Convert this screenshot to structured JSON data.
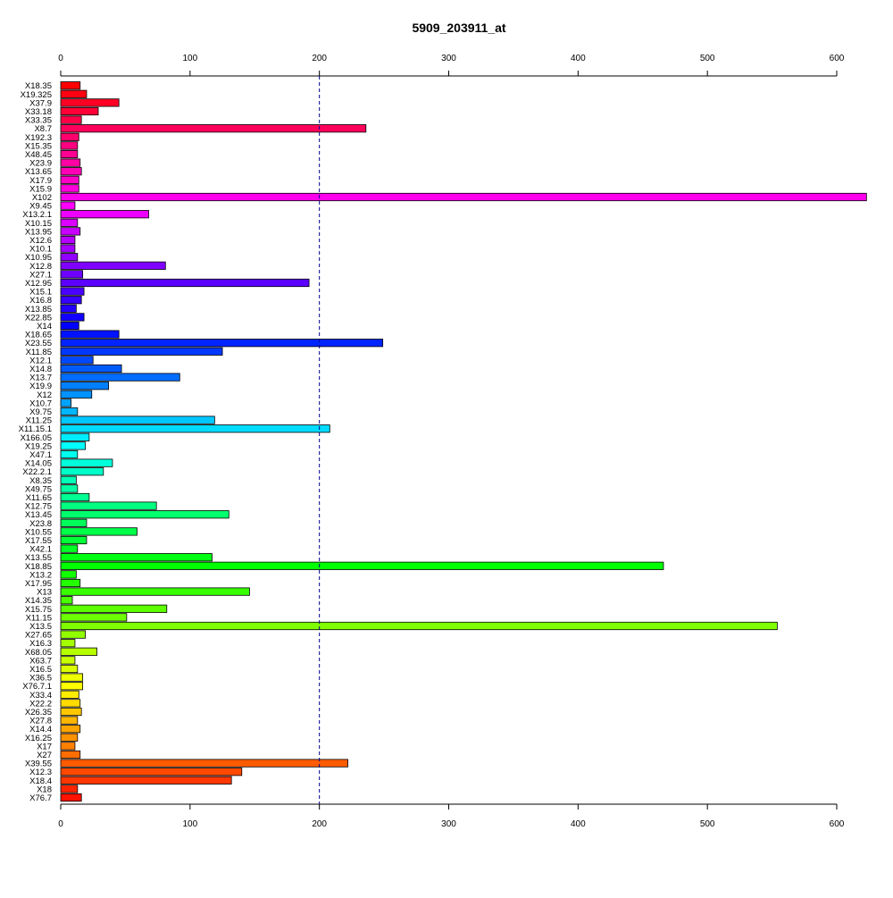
{
  "chart_data": {
    "type": "bar",
    "orientation": "horizontal",
    "title": "5909_203911_at",
    "xlabel": "",
    "ylabel": "",
    "xlim": [
      0,
      600
    ],
    "xticks": [
      0,
      100,
      200,
      300,
      400,
      500,
      600
    ],
    "axes": "top and bottom",
    "grid": false,
    "reference_line": {
      "x": 200,
      "style": "dashed",
      "color": "#00008b"
    },
    "bar_colors": "rainbow gradient from top (red) through magenta, blue, cyan, green, yellow, orange back to red",
    "categories": [
      "X18.35",
      "X19.325",
      "X37.9",
      "X33.18",
      "X33.35",
      "X8.7",
      "X192.3",
      "X15.35",
      "X48.45",
      "X23.9",
      "X13.65",
      "X17.9",
      "X15.9",
      "X102",
      "X9.45",
      "X13.2.1",
      "X10.15",
      "X13.95",
      "X12.6",
      "X10.1",
      "X10.95",
      "X12.8",
      "X27.1",
      "X12.95",
      "X15.1",
      "X16.8",
      "X13.85",
      "X22.85",
      "X14",
      "X18.65",
      "X23.55",
      "X11.85",
      "X12.1",
      "X14.8",
      "X13.7",
      "X19.9",
      "X12",
      "X10.7",
      "X9.75",
      "X11.25",
      "X11.15.1",
      "X166.05",
      "X19.25",
      "X47.1",
      "X14.05",
      "X22.2.1",
      "X8.35",
      "X49.75",
      "X11.65",
      "X12.75",
      "X13.45",
      "X23.8",
      "X10.55",
      "X17.55",
      "X42.1",
      "X13.55",
      "X18.85",
      "X13.2",
      "X17.95",
      "X13",
      "X14.35",
      "X15.75",
      "X11.15",
      "X13.5",
      "X27.65",
      "X16.3",
      "X68.05",
      "X63.7",
      "X16.5",
      "X36.5",
      "X76.7.1",
      "X33.4",
      "X22.2",
      "X26.35",
      "X27.8",
      "X14.4",
      "X16.25",
      "X17",
      "X27",
      "X39.55",
      "X12.3",
      "X18.4",
      "X18",
      "X76.7"
    ],
    "values": [
      15,
      20,
      45,
      29,
      16,
      236,
      14,
      13,
      13,
      15,
      16,
      14,
      14,
      623,
      11,
      68,
      13,
      15,
      11,
      11,
      13,
      81,
      17,
      192,
      18,
      16,
      12,
      18,
      14,
      45,
      249,
      125,
      25,
      47,
      92,
      37,
      24,
      8,
      13,
      119,
      208,
      22,
      19,
      13,
      40,
      33,
      12,
      13,
      22,
      74,
      130,
      20,
      59,
      20,
      13,
      117,
      466,
      12,
      15,
      146,
      9,
      82,
      51,
      554,
      19,
      11,
      28,
      11,
      13,
      17,
      17,
      14,
      15,
      16,
      13,
      15,
      13,
      11,
      15,
      222,
      140,
      132,
      13,
      16
    ]
  }
}
